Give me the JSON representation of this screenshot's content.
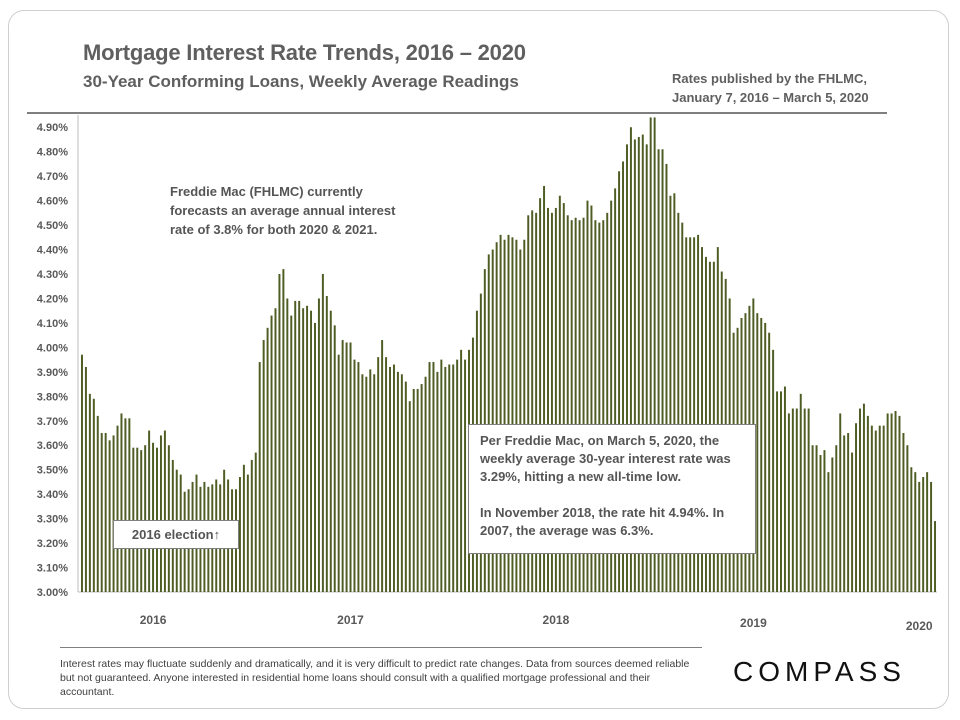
{
  "header": {
    "title": "Mortgage Interest Rate Trends, 2016 – 2020",
    "subtitle": "30-Year Conforming Loans, Weekly Average Readings",
    "source_line1": "Rates published by the FHLMC,",
    "source_line2": "January 7, 2016 – March 5, 2020"
  },
  "annotations": {
    "forecast_line1": "Freddie Mac (FHLMC) currently",
    "forecast_line2": "forecasts an average annual interest",
    "forecast_line3": "rate of 3.8% for both 2020 & 2021.",
    "freddie_para1": "Per Freddie Mac, on March 5, 2020, the weekly average 30-year interest rate was 3.29%, hitting a new all-time low.",
    "freddie_para2": "In November 2018, the rate hit 4.94%. In 2007, the average was 6.3%.",
    "election": "2016 election↑"
  },
  "footer": {
    "disclaimer": "Interest rates may fluctuate suddenly and dramatically, and it is very difficult to predict rate changes. Data from sources deemed reliable but not guaranteed. Anyone interested in residential home loans should consult with a qualified mortgage professional and their accountant.",
    "logo": "COMPASS"
  },
  "chart_data": {
    "type": "bar",
    "title": "Mortgage Interest Rate Trends, 2016 – 2020",
    "ylim": [
      3.0,
      4.95
    ],
    "yticks": [
      "3.00%",
      "3.10%",
      "3.20%",
      "3.30%",
      "3.40%",
      "3.50%",
      "3.60%",
      "3.70%",
      "3.80%",
      "3.90%",
      "4.00%",
      "4.10%",
      "4.20%",
      "4.30%",
      "4.40%",
      "4.50%",
      "4.60%",
      "4.70%",
      "4.80%",
      "4.90%"
    ],
    "grid": false,
    "bar_color": "#4e5d23",
    "year_labels": [
      "2016",
      "2017",
      "2018",
      "2019",
      "2020"
    ],
    "year_label_index": [
      18,
      68,
      120,
      170,
      212
    ],
    "values": [
      3.97,
      3.92,
      3.81,
      3.79,
      3.72,
      3.65,
      3.65,
      3.62,
      3.64,
      3.68,
      3.73,
      3.71,
      3.71,
      3.59,
      3.59,
      3.58,
      3.6,
      3.66,
      3.61,
      3.59,
      3.64,
      3.66,
      3.6,
      3.54,
      3.5,
      3.48,
      3.41,
      3.42,
      3.45,
      3.48,
      3.43,
      3.45,
      3.43,
      3.44,
      3.46,
      3.44,
      3.5,
      3.46,
      3.42,
      3.42,
      3.47,
      3.52,
      3.48,
      3.54,
      3.57,
      3.94,
      4.03,
      4.08,
      4.13,
      4.16,
      4.3,
      4.32,
      4.2,
      4.13,
      4.19,
      4.19,
      4.16,
      4.17,
      4.15,
      4.1,
      4.2,
      4.3,
      4.21,
      4.15,
      4.09,
      3.97,
      4.03,
      4.02,
      4.02,
      3.95,
      3.94,
      3.89,
      3.88,
      3.91,
      3.89,
      3.96,
      4.03,
      3.96,
      3.92,
      3.93,
      3.9,
      3.89,
      3.86,
      3.78,
      3.83,
      3.83,
      3.85,
      3.88,
      3.94,
      3.94,
      3.9,
      3.95,
      3.92,
      3.93,
      3.93,
      3.95,
      3.99,
      3.95,
      3.99,
      4.04,
      4.15,
      4.22,
      4.32,
      4.38,
      4.4,
      4.43,
      4.46,
      4.44,
      4.46,
      4.45,
      4.44,
      4.4,
      4.44,
      4.54,
      4.56,
      4.55,
      4.61,
      4.66,
      4.57,
      4.55,
      4.57,
      4.62,
      4.59,
      4.54,
      4.52,
      4.53,
      4.52,
      4.53,
      4.6,
      4.58,
      4.52,
      4.51,
      4.52,
      4.55,
      4.6,
      4.65,
      4.72,
      4.76,
      4.83,
      4.9,
      4.85,
      4.86,
      4.87,
      4.83,
      4.94,
      4.94,
      4.81,
      4.81,
      4.75,
      4.62,
      4.63,
      4.55,
      4.51,
      4.45,
      4.45,
      4.45,
      4.46,
      4.41,
      4.37,
      4.35,
      4.35,
      4.41,
      4.31,
      4.28,
      4.2,
      4.06,
      4.08,
      4.12,
      4.14,
      4.17,
      4.2,
      4.14,
      4.12,
      4.1,
      4.06,
      3.99,
      3.82,
      3.82,
      3.84,
      3.73,
      3.75,
      3.75,
      3.81,
      3.75,
      3.75,
      3.6,
      3.6,
      3.56,
      3.58,
      3.49,
      3.55,
      3.6,
      3.73,
      3.64,
      3.65,
      3.57,
      3.69,
      3.75,
      3.77,
      3.72,
      3.68,
      3.66,
      3.68,
      3.68,
      3.73,
      3.73,
      3.74,
      3.72,
      3.65,
      3.6,
      3.51,
      3.49,
      3.45,
      3.47,
      3.49,
      3.45,
      3.29
    ]
  }
}
